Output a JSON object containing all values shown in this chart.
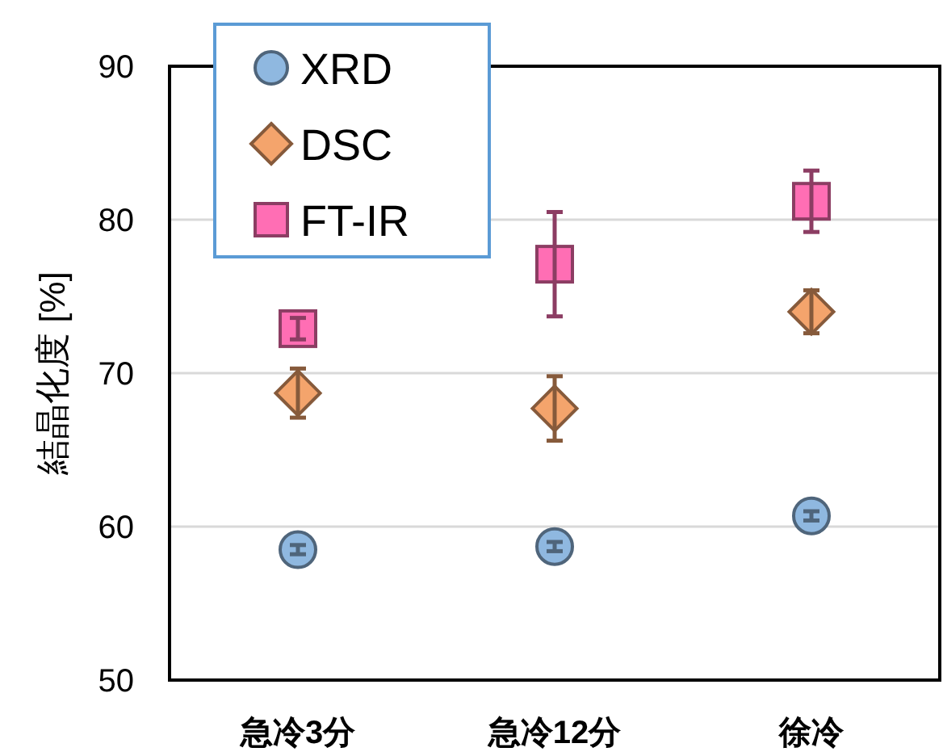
{
  "chart_data": {
    "type": "scatter",
    "ylabel": "結晶化度 [%]",
    "categories": [
      "急冷3分",
      "急冷12分",
      "徐冷"
    ],
    "series": [
      {
        "name": "XRD",
        "color": "#8fb8e0",
        "marker": "circle",
        "values": [
          58.5,
          58.7,
          60.7
        ],
        "errors": [
          0.3,
          0.3,
          0.3
        ]
      },
      {
        "name": "DSC",
        "color": "#f4a46c",
        "marker": "diamond",
        "values": [
          68.7,
          67.7,
          74.0
        ],
        "errors": [
          1.6,
          2.1,
          1.4
        ]
      },
      {
        "name": "FT-IR",
        "color": "#ff6eb4",
        "marker": "square",
        "values": [
          72.9,
          77.1,
          81.2
        ],
        "errors": [
          0.7,
          3.4,
          2.0
        ]
      }
    ],
    "ylim": [
      50,
      90
    ],
    "yticks": [
      50,
      60,
      70,
      80,
      90
    ],
    "grid": "y",
    "legend": "top left"
  }
}
